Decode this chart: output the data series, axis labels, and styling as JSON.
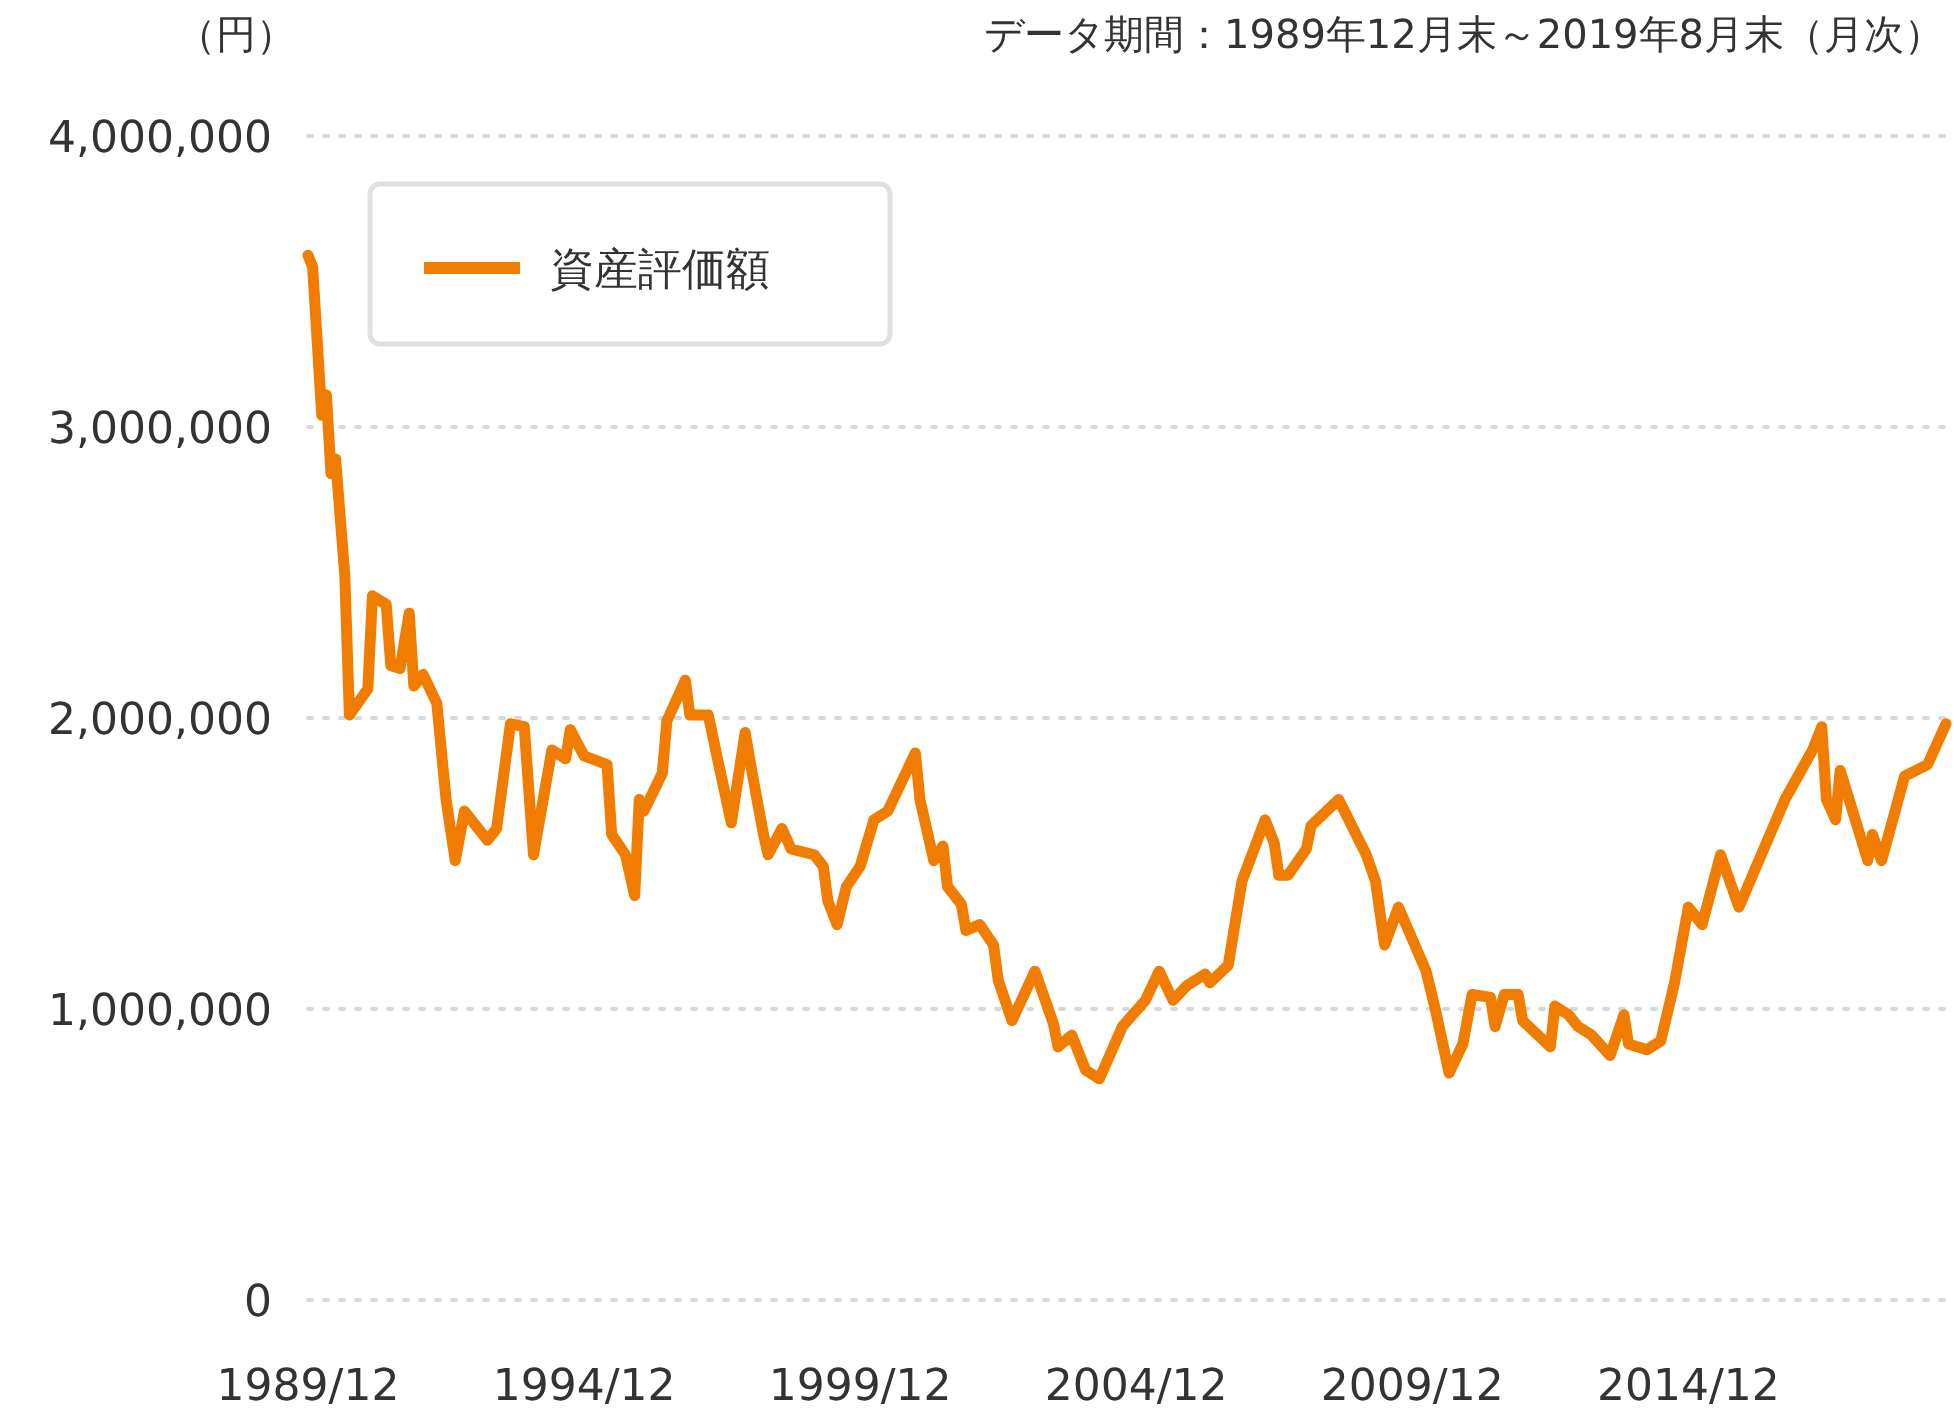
{
  "chart_data": {
    "type": "line",
    "ylabel": "（円）",
    "subtitle": "データ期間：1989年12月末～2019年8月末（月次）",
    "x": [
      "1989-12",
      "1990-01",
      "1990-03",
      "1990-04",
      "1990-05",
      "1990-06",
      "1990-08",
      "1990-09",
      "1991-01",
      "1991-02",
      "1991-05",
      "1991-06",
      "1991-08",
      "1991-10",
      "1991-11",
      "1992-01",
      "1992-04",
      "1992-06",
      "1992-08",
      "1992-10",
      "1993-03",
      "1993-05",
      "1993-08",
      "1993-11",
      "1994-01",
      "1994-05",
      "1994-08",
      "1994-09",
      "1994-12",
      "1995-05",
      "1995-06",
      "1995-09",
      "1995-11",
      "1995-12",
      "1996-01",
      "1996-05",
      "1996-06",
      "1996-10",
      "1996-11",
      "1997-03",
      "1997-05",
      "1997-08",
      "1997-11",
      "1998-01",
      "1998-03",
      "1998-04",
      "1998-07",
      "1998-09",
      "1999-02",
      "1999-04",
      "1999-05",
      "1999-07",
      "1999-09",
      "1999-12",
      "2000-03",
      "2000-06",
      "2000-12",
      "2001-01",
      "2001-04",
      "2001-06",
      "2001-07",
      "2001-10",
      "2001-11",
      "2002-02",
      "2002-05",
      "2002-06",
      "2002-09",
      "2003-02",
      "2003-06",
      "2003-07",
      "2003-10",
      "2004-01",
      "2004-04",
      "2004-09",
      "2005-02",
      "2005-05",
      "2005-08",
      "2005-11",
      "2006-03",
      "2006-04",
      "2006-08",
      "2006-11",
      "2007-04",
      "2007-06",
      "2007-07",
      "2007-09",
      "2008-01",
      "2008-02",
      "2008-08",
      "2009-02",
      "2009-04",
      "2009-06",
      "2009-09",
      "2009-12",
      "2010-03",
      "2010-05",
      "2010-08",
      "2010-11",
      "2011-01",
      "2011-05",
      "2011-06",
      "2011-08",
      "2011-11",
      "2011-12",
      "2012-06",
      "2012-07",
      "2012-10",
      "2012-12",
      "2013-03",
      "2013-07",
      "2013-10",
      "2013-11",
      "2014-03",
      "2014-06",
      "2014-09",
      "2014-12",
      "2015-03",
      "2015-07",
      "2015-11",
      "2016-09",
      "2017-03",
      "2017-05",
      "2017-06",
      "2017-08",
      "2017-09",
      "2018-03",
      "2018-04",
      "2018-06",
      "2018-11",
      "2019-04",
      "2019-08"
    ],
    "series": [
      {
        "name": "資産評価額",
        "color": "#f07c00",
        "values": [
          3590000,
          3550000,
          3040000,
          3110000,
          2840000,
          2890000,
          2490000,
          2010000,
          2100000,
          2420000,
          2390000,
          2180000,
          2170000,
          2360000,
          2110000,
          2150000,
          2050000,
          1720000,
          1510000,
          1680000,
          1580000,
          1620000,
          1980000,
          1970000,
          1530000,
          1890000,
          1860000,
          1960000,
          1870000,
          1840000,
          1600000,
          1530000,
          1390000,
          1720000,
          1680000,
          1810000,
          1990000,
          2130000,
          2010000,
          2010000,
          1860000,
          1640000,
          1950000,
          1770000,
          1600000,
          1530000,
          1620000,
          1550000,
          1530000,
          1490000,
          1370000,
          1290000,
          1420000,
          1490000,
          1650000,
          1680000,
          1880000,
          1720000,
          1510000,
          1560000,
          1420000,
          1360000,
          1270000,
          1290000,
          1220000,
          1100000,
          960000,
          1130000,
          950000,
          870000,
          910000,
          790000,
          760000,
          940000,
          1030000,
          1130000,
          1030000,
          1080000,
          1120000,
          1090000,
          1150000,
          1440000,
          1650000,
          1570000,
          1460000,
          1460000,
          1550000,
          1630000,
          1720000,
          1530000,
          1440000,
          1220000,
          1350000,
          1240000,
          1130000,
          1000000,
          780000,
          880000,
          1050000,
          1040000,
          940000,
          1050000,
          1050000,
          960000,
          870000,
          1010000,
          980000,
          940000,
          910000,
          840000,
          980000,
          880000,
          860000,
          890000,
          1090000,
          1350000,
          1290000,
          1530000,
          1350000,
          1720000,
          1890000,
          1970000,
          1720000,
          1650000,
          1820000,
          1510000,
          1600000,
          1510000,
          1800000,
          1840000,
          1980000
        ]
      }
    ],
    "xlim": [
      "1989-12",
      "2019-08"
    ],
    "xticks": [
      {
        "value": "1989-12",
        "label": "1989/12"
      },
      {
        "value": "1994-12",
        "label": "1994/12"
      },
      {
        "value": "1999-12",
        "label": "1999/12"
      },
      {
        "value": "2004-12",
        "label": "2004/12"
      },
      {
        "value": "2009-12",
        "label": "2009/12"
      },
      {
        "value": "2014-12",
        "label": "2014/12"
      }
    ],
    "ylim": [
      0,
      4000000
    ],
    "yticks": [
      0,
      {
        "value": 1000000,
        "label": "1,000,000"
      },
      {
        "value": 2000000,
        "label": "2,000,000"
      },
      {
        "value": 3000000,
        "label": "3,000,000"
      },
      {
        "value": 4000000,
        "label": "4,000,000"
      }
    ],
    "grid": "y",
    "legend": "top left",
    "line_style": "solid",
    "marker": "none"
  }
}
